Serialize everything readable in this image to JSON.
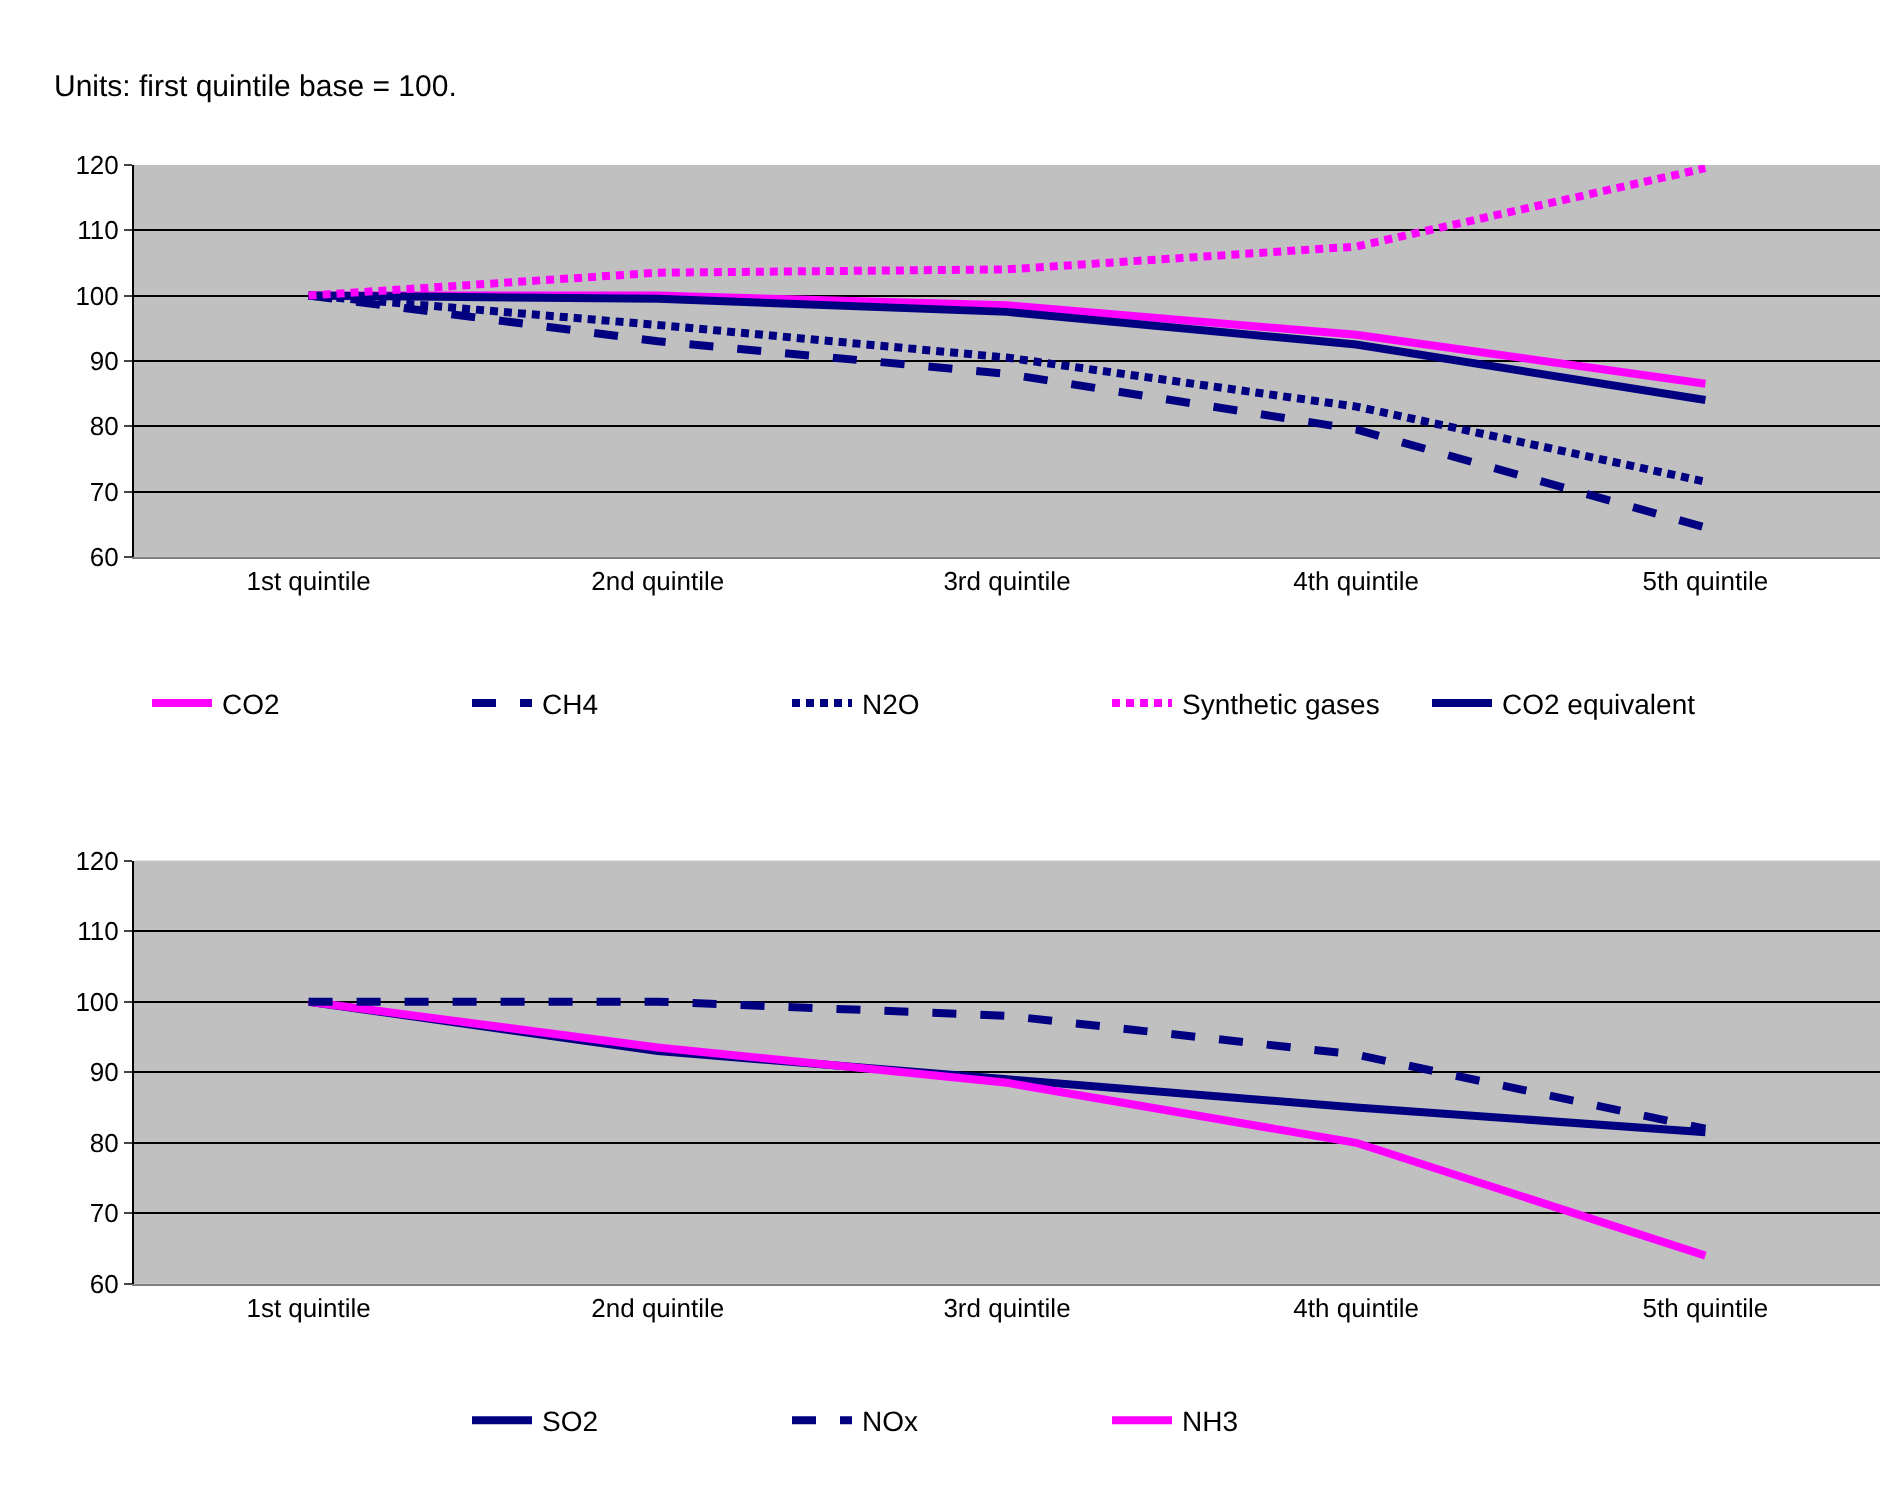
{
  "chart_data": [
    {
      "type": "line",
      "annotations": [
        "Units: first quintile base = 100."
      ],
      "categories": [
        "1st quintile",
        "2nd quintile",
        "3rd quintile",
        "4th quintile",
        "5th quintile"
      ],
      "ylim": [
        60,
        120
      ],
      "yticks": [
        60,
        70,
        80,
        90,
        100,
        110,
        120
      ],
      "grid": "y",
      "legend": "bottom",
      "marker": "none",
      "series": [
        {
          "name": "CO2",
          "color": "#ff00ff",
          "line_style": "solid",
          "values": [
            100,
            100,
            98.5,
            94,
            86.5
          ]
        },
        {
          "name": "CH4",
          "color": "#000080",
          "line_style": "dashed",
          "values": [
            100,
            93,
            88,
            79.5,
            64.5
          ]
        },
        {
          "name": "N2O",
          "color": "#000080",
          "line_style": "dotted",
          "values": [
            100,
            95.5,
            90.5,
            83,
            71.5
          ]
        },
        {
          "name": "Synthetic gases",
          "color": "#ff00ff",
          "line_style": "dotted",
          "values": [
            100,
            103.5,
            104,
            107.5,
            119.5
          ]
        },
        {
          "name": "CO2 equivalent",
          "color": "#000080",
          "line_style": "solid",
          "values": [
            100,
            99.5,
            97.5,
            92.5,
            84
          ]
        }
      ]
    },
    {
      "type": "line",
      "categories": [
        "1st quintile",
        "2nd quintile",
        "3rd quintile",
        "4th quintile",
        "5th quintile"
      ],
      "ylim": [
        60,
        120
      ],
      "yticks": [
        60,
        70,
        80,
        90,
        100,
        110,
        120
      ],
      "grid": "y",
      "legend": "bottom",
      "marker": "none",
      "series": [
        {
          "name": "SO2",
          "color": "#000080",
          "line_style": "solid",
          "values": [
            100,
            93,
            89,
            85,
            81.5
          ]
        },
        {
          "name": "NOx",
          "color": "#000080",
          "line_style": "dashed",
          "values": [
            100,
            100,
            98,
            92.5,
            82
          ]
        },
        {
          "name": "NH3",
          "color": "#ff00ff",
          "line_style": "solid",
          "values": [
            100,
            93.5,
            88.5,
            80,
            64
          ]
        }
      ]
    }
  ]
}
